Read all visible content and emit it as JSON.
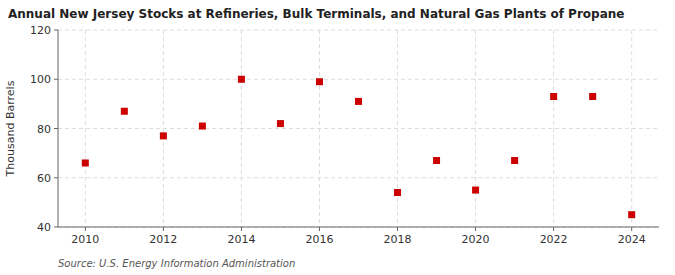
{
  "chart_data": {
    "type": "scatter",
    "title": "Annual New Jersey Stocks at Refineries, Bulk Terminals, and Natural Gas Plants of Propane",
    "y_label": "Thousand Barrels",
    "annotations": [
      "Source: U.S. Energy Information Administration"
    ],
    "x": [
      2010,
      2011,
      2012,
      2013,
      2014,
      2015,
      2016,
      2017,
      2018,
      2019,
      2020,
      2021,
      2022,
      2023,
      2024
    ],
    "values": [
      66,
      87,
      77,
      81,
      100,
      82,
      99,
      91,
      54,
      67,
      55,
      67,
      93,
      93,
      45
    ],
    "color": "#cc0000",
    "marker": "square",
    "xlim": [
      2009.3,
      2024.7
    ],
    "xticks": [
      2010,
      2012,
      2014,
      2016,
      2018,
      2020,
      2022,
      2024
    ],
    "ylim": [
      40,
      120
    ],
    "yticks": [
      40,
      60,
      80,
      100,
      120
    ],
    "grid": true
  }
}
